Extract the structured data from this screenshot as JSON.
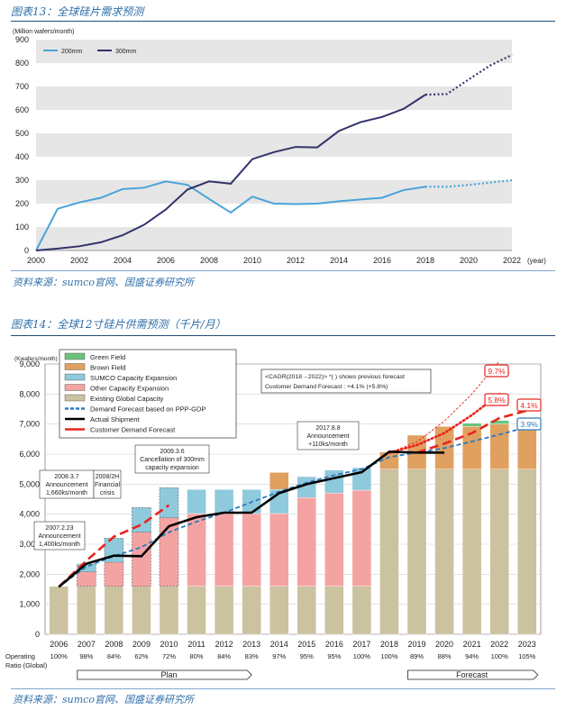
{
  "figure1": {
    "title": "图表13：全球硅片需求预测",
    "source": "资料来源：sumco官网、国盛证券研究所"
  },
  "figure2": {
    "title": "图表14：全球12寸硅片供需预测（千片/月）",
    "source": "资料来源：sumco官网、国盛证券研究所"
  },
  "chart_data": [
    {
      "type": "line",
      "ylabel": "(Million wafers/month)",
      "xlabel": "(year)",
      "ylim": [
        0,
        900
      ],
      "yticks": [
        0,
        100,
        200,
        300,
        400,
        500,
        600,
        700,
        800,
        900
      ],
      "xticks": [
        "2000",
        "2002",
        "2004",
        "2006",
        "2008",
        "2010",
        "2012",
        "2014",
        "2016",
        "2018",
        "2020",
        "2022"
      ],
      "grid": "horizontal bands",
      "legend_position": "top-left",
      "colors": {
        "200mm": "#4aa3d9",
        "300mm": "#33336b",
        "band": "#e6e6e6"
      },
      "series": [
        {
          "name": "200mm",
          "x": [
            2000,
            2001,
            2002,
            2003,
            2004,
            2005,
            2006,
            2007,
            2008,
            2009,
            2010,
            2011,
            2012,
            2013,
            2014,
            2015,
            2016,
            2017,
            2018
          ],
          "values": [
            0,
            178,
            205,
            225,
            262,
            268,
            295,
            280,
            220,
            162,
            230,
            200,
            198,
            200,
            210,
            218,
            225,
            258,
            272
          ],
          "forecast_x": [
            2018,
            2019,
            2020,
            2021,
            2022
          ],
          "forecast_values": [
            272,
            272,
            280,
            290,
            300
          ]
        },
        {
          "name": "300mm",
          "x": [
            2000,
            2001,
            2002,
            2003,
            2004,
            2005,
            2006,
            2007,
            2008,
            2009,
            2010,
            2011,
            2012,
            2013,
            2014,
            2015,
            2016,
            2017,
            2018
          ],
          "values": [
            0,
            8,
            18,
            35,
            65,
            110,
            175,
            260,
            295,
            285,
            390,
            420,
            442,
            440,
            510,
            548,
            570,
            605,
            665
          ],
          "forecast_x": [
            2018,
            2019,
            2020,
            2021,
            2022
          ],
          "forecast_values": [
            665,
            668,
            730,
            790,
            835
          ]
        }
      ]
    },
    {
      "type": "bar",
      "ylabel": "(Kwafers/month)",
      "ylim": [
        0,
        9000
      ],
      "yticks": [
        0,
        1000,
        2000,
        3000,
        4000,
        5000,
        6000,
        7000,
        8000,
        9000
      ],
      "categories": [
        "2006",
        "2007",
        "2008",
        "2009",
        "2010",
        "2011",
        "2012",
        "2013",
        "2014",
        "2015",
        "2016",
        "2017",
        "2018",
        "2019",
        "2020",
        "2021",
        "2022",
        "2023"
      ],
      "operating_ratio_label": "Operating Ratio (Global)",
      "operating_ratio": [
        "100%",
        "98%",
        "84%",
        "62%",
        "72%",
        "80%",
        "84%",
        "83%",
        "97%",
        "95%",
        "95%",
        "100%",
        "100%",
        "89%",
        "88%",
        "94%",
        "100%",
        "105%"
      ],
      "legend": [
        {
          "name": "Green Field",
          "color": "#6cc27d",
          "style": "box"
        },
        {
          "name": "Brown Field",
          "color": "#e0a060",
          "style": "box"
        },
        {
          "name": "SUMCO Capacity Expansion",
          "color": "#8fc9dc",
          "style": "box"
        },
        {
          "name": "Other Capacity Expansion",
          "color": "#f4a3a3",
          "style": "box"
        },
        {
          "name": "Existing Global Capacity",
          "color": "#cbc29f",
          "style": "box"
        },
        {
          "name": "Demand Forecast based on PPP-GDP",
          "color": "#2a7bc0",
          "style": "dashed"
        },
        {
          "name": "Actual Shipment",
          "color": "#000000",
          "style": "line"
        },
        {
          "name": "Customer Demand Forecast",
          "color": "#e8231e",
          "style": "line"
        }
      ],
      "stacks": {
        "existing": [
          1600,
          1600,
          1600,
          1600,
          1600,
          1600,
          1600,
          1600,
          1600,
          1600,
          1600,
          1600,
          5500,
          5500,
          5500,
          5500,
          5500,
          5500
        ],
        "other": [
          0,
          480,
          800,
          1800,
          2280,
          2420,
          2420,
          2420,
          2420,
          2950,
          3100,
          3200,
          0,
          0,
          0,
          0,
          0,
          0
        ],
        "sumco": [
          0,
          260,
          800,
          820,
          1000,
          800,
          800,
          800,
          800,
          700,
          770,
          750,
          0,
          0,
          0,
          0,
          0,
          0
        ],
        "brown": [
          0,
          0,
          0,
          0,
          0,
          0,
          0,
          0,
          570,
          0,
          0,
          0,
          570,
          1130,
          1420,
          1420,
          1500,
          1500
        ],
        "green": [
          0,
          0,
          0,
          0,
          0,
          0,
          0,
          0,
          0,
          0,
          0,
          0,
          0,
          0,
          0,
          110,
          120,
          120
        ]
      },
      "actual_shipment": [
        1580,
        2350,
        2620,
        2600,
        3600,
        3900,
        4050,
        4050,
        4700,
        5000,
        5200,
        5400,
        6080,
        6050,
        6050,
        null,
        null,
        null
      ],
      "demand_forecast_ppp_gdp": [
        1580,
        2250,
        2600,
        2900,
        3400,
        3750,
        4050,
        4400,
        4750,
        5050,
        5300,
        5500,
        5900,
        6050,
        6200,
        6420,
        6650,
        6900
      ],
      "customer_demand_forecast_early": [
        1580,
        2450,
        3250,
        3650,
        4300
      ],
      "customer_demand_forecast_recent": {
        "x": [
          "2019",
          "2020",
          "2021",
          "2022",
          "2023"
        ],
        "values": [
          6050,
          6350,
          6700,
          7200,
          7450
        ]
      },
      "previous_forecast_dotted": [
        {
          "x": [
            "2018",
            "2019",
            "2020",
            "2021",
            "2022"
          ],
          "values": [
            6050,
            6300,
            6700,
            7300,
            8000
          ],
          "label": "5.8%"
        },
        {
          "x": [
            "2018",
            "2019",
            "2020",
            "2021",
            "2022"
          ],
          "values": [
            6050,
            6400,
            7100,
            8000,
            9100
          ],
          "label": "9.7%"
        }
      ],
      "cagr_labels": [
        {
          "text": "9.7%",
          "color": "#e8231e"
        },
        {
          "text": "5.8%",
          "color": "#e8231e"
        },
        {
          "text": "4.1%",
          "color": "#e8231e"
        },
        {
          "text": "3.9%",
          "color": "#2a7bc0"
        }
      ],
      "cagr_box": {
        "line1": "<CAGR(2018→2022)> *( ) shows previous forecast",
        "line2": "Customer Demand Forecast : +4.1% (+5.8%)"
      },
      "annotations": [
        {
          "lines": [
            "2007.2.23",
            "Announcement",
            "1,400ks/month"
          ]
        },
        {
          "lines": [
            "2008.3.7",
            "Announcement",
            "1,660ks/month"
          ]
        },
        {
          "lines": [
            "2008/2H",
            "Financial",
            "crisis"
          ]
        },
        {
          "lines": [
            "2009.3.6",
            "Cancellation of 300mm",
            "capacity expansion"
          ]
        },
        {
          "lines": [
            "2017.8.8",
            "Announcement",
            "+110ks/month"
          ]
        }
      ],
      "plan_label": "Plan",
      "forecast_label": "Forecast"
    }
  ]
}
